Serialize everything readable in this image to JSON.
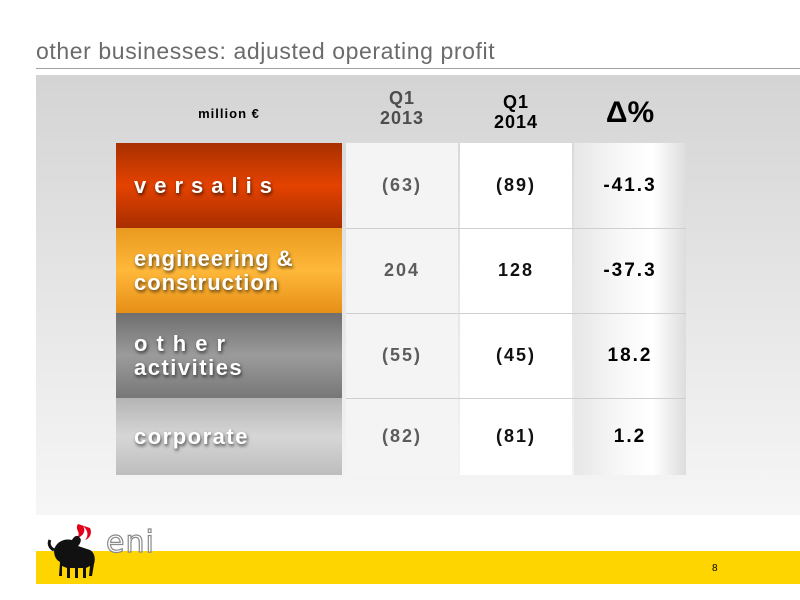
{
  "slide": {
    "title": "other businesses: adjusted operating profit",
    "page_number": "8"
  },
  "table": {
    "unit_label": "million €",
    "col_q1_2013": [
      "Q1",
      "2013"
    ],
    "col_q1_2014": [
      "Q1",
      "2014"
    ],
    "col_delta": "Δ%",
    "rows": [
      {
        "label_lines": [
          "versalis"
        ],
        "q1_2013": "(63)",
        "q1_2014": "(89)",
        "delta": "-41.3",
        "color": "#e44200"
      },
      {
        "label_lines": [
          "engineering &",
          "construction"
        ],
        "q1_2013": "204",
        "q1_2014": "128",
        "delta": "-37.3",
        "color": "#ffb83a"
      },
      {
        "label_lines": [
          "other",
          "activities"
        ],
        "q1_2013": "(55)",
        "q1_2014": "(45)",
        "delta": "18.2",
        "color": "#9b9b9b"
      },
      {
        "label_lines": [
          "corporate"
        ],
        "q1_2013": "(82)",
        "q1_2014": "(81)",
        "delta": "1.2",
        "color": "#d6d6d6"
      }
    ]
  },
  "logo": {
    "word": "eni",
    "icon": "six-legged-dog-icon",
    "accent": "#ffd500"
  }
}
